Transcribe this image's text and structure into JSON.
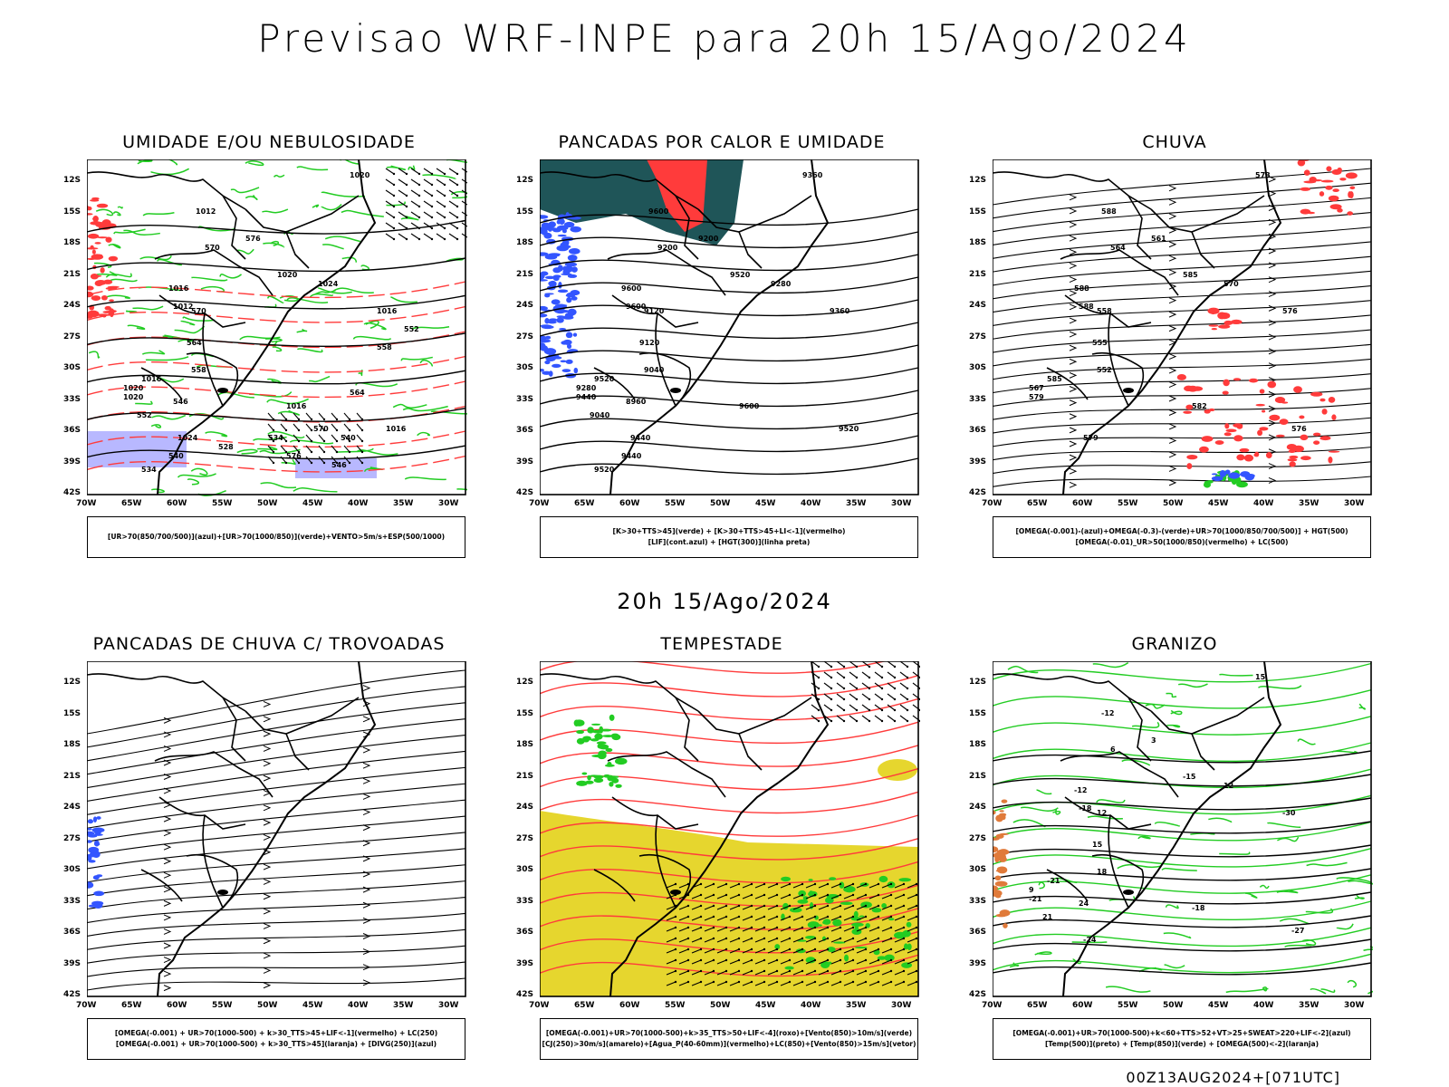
{
  "page": {
    "title": "Previsao WRF-INPE  para 20h 15/Ago/2024",
    "middle_title": "20h 15/Ago/2024",
    "footer": "00Z13AUG2024+[071UTC]"
  },
  "axes": {
    "lat_labels": [
      "12S",
      "15S",
      "18S",
      "21S",
      "24S",
      "27S",
      "30S",
      "33S",
      "36S",
      "39S",
      "42S"
    ],
    "lon_labels": [
      "70W",
      "65W",
      "60W",
      "55W",
      "50W",
      "45W",
      "40W",
      "35W",
      "30W"
    ]
  },
  "colors": {
    "black": "#000000",
    "red": "#ff3b3b",
    "green": "#22cc22",
    "blue": "#3355ff",
    "lavender": "#b0b0ff",
    "teal": "#1f5558",
    "yellow": "#e6d62e",
    "orange": "#e07a3a"
  },
  "panels": [
    {
      "id": "umidade",
      "title": "UMIDADE E/OU NEBULOSIDADE",
      "legend": [
        "[UR>70(850/700/500)](azul)+[UR>70(1000/850)](verde)+VENTO>5m/s+ESP(500/1000)"
      ],
      "contour_labels": [
        "1012",
        "1016",
        "1020",
        "1016",
        "1012",
        "1016",
        "1020",
        "1024",
        "1016",
        "1016",
        "1020",
        "1024",
        "1020",
        "570",
        "576",
        "570",
        "564",
        "558",
        "552",
        "546",
        "540",
        "534",
        "528",
        "576",
        "570",
        "564",
        "558",
        "552",
        "546",
        "540",
        "534"
      ]
    },
    {
      "id": "pancadas-calor",
      "title": "PANCADAS POR CALOR E UMIDADE",
      "legend": [
        "[K>30+TTS>45](verde) + [K>30+TTS>45+LI<-1](vermelho)",
        "[LIF](cont.azul) + [HGT(300)](linha preta)"
      ],
      "contour_labels": [
        "9600",
        "9600",
        "9520",
        "9600",
        "9600",
        "9520",
        "9440",
        "9440",
        "9520",
        "9360",
        "9360",
        "9280",
        "9280",
        "9200",
        "9200",
        "9120",
        "9120",
        "9040",
        "9040",
        "8960",
        "9440",
        "9520"
      ]
    },
    {
      "id": "chuva",
      "title": "CHUVA",
      "legend": [
        "[OMEGA(-0.001)-(azul)+OMEGA(-0.3)-(verde)+UR>70(1000/850/700/500)] + HGT(500)",
        "[OMEGA(-0.01)_UR>50(1000/850)(vermelho) + LC(500)"
      ],
      "contour_labels": [
        "588",
        "588",
        "585",
        "582",
        "588",
        "585",
        "579",
        "579",
        "576",
        "576",
        "573",
        "570",
        "567",
        "564",
        "561",
        "558",
        "555",
        "552"
      ]
    },
    {
      "id": "trovoadas",
      "title": "PANCADAS DE CHUVA C/ TROVOADAS",
      "legend": [
        "[OMEGA(-0.001) + UR>70(1000-500) + k>30_TTS>45+LIF<-1](vermelho) + LC(250)",
        "[OMEGA(-0.001) + UR>70(1000-500) + k>30_TTS>45](laranja) + [DIVG(250)](azul)"
      ],
      "contour_labels": []
    },
    {
      "id": "tempestade",
      "title": "TEMPESTADE",
      "legend": [
        "[OMEGA(-0.001)+UR>70(1000-500)+k>35_TTS>50+LIF<-4](roxo)+[Vento(850)>10m/s](verde)",
        "[CJ(250)>30m/s](amarelo)+[Agua_P(40-60mm)](vermelho)+LC(850)+[Vento(850)>15m/s](vetor)"
      ],
      "contour_labels": []
    },
    {
      "id": "granizo",
      "title": "GRANIZO",
      "legend": [
        "[OMEGA(-0.001)+UR>70(1000-500)+k<60+TTS>52+VT>25+SWEAT>220+LIF<-2](azul)",
        "[Temp(500)](preto) + [Temp(850)](verde) + [OMEGA(500)<-2](laranja)"
      ],
      "contour_labels": [
        "-12",
        "-12",
        "-15",
        "-18",
        "-18",
        "-21",
        "-21",
        "-24",
        "-27",
        "-30",
        "15",
        "12",
        "9",
        "6",
        "3",
        "12",
        "15",
        "18",
        "21",
        "24"
      ]
    }
  ]
}
